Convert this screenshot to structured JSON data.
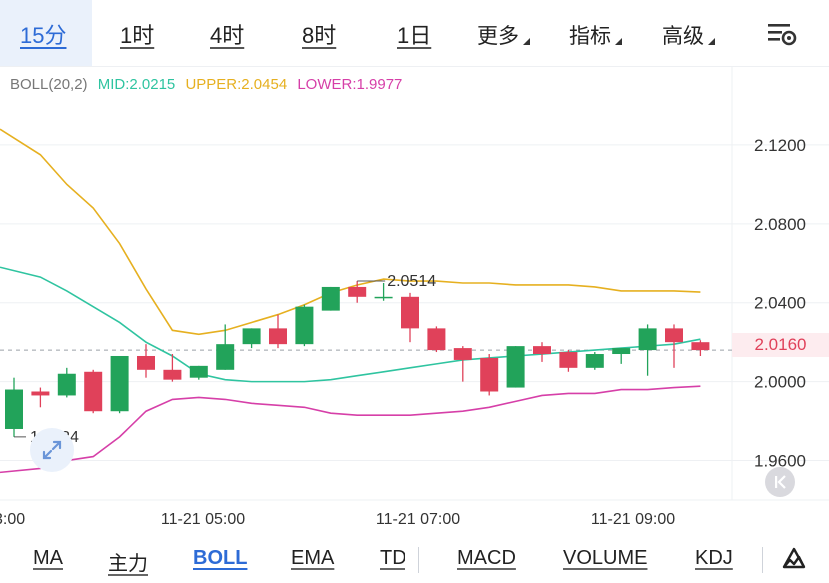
{
  "timeframes": {
    "tf_15m": "15分",
    "tf_1h": "1时",
    "tf_4h": "4时",
    "tf_8h": "8时",
    "tf_1d": "1日"
  },
  "menus": {
    "more": "更多",
    "indicators": "指标",
    "advanced": "高级"
  },
  "legend": {
    "boll": "BOLL(20,2)",
    "mid": "MID:2.0215",
    "upper": "UPPER:2.0454",
    "lower": "LOWER:1.9977"
  },
  "colors": {
    "up": "#22a35a",
    "down": "#e0415a",
    "mid": "#2fc4a0",
    "upper": "#e6b020",
    "lower": "#d63fa8",
    "accent": "#2d6bd6"
  },
  "price_axis": {
    "labels": [
      "2.1200",
      "2.0800",
      "2.0400",
      "2.0000",
      "1.9600"
    ],
    "current_price": "2.0160"
  },
  "time_axis": [
    "3:00",
    "11-21 05:00",
    "11-21 07:00",
    "11-21 09:00"
  ],
  "annotations": {
    "high": "2.0514",
    "low": "1.9734"
  },
  "chart_data": {
    "type": "candlestick",
    "ylim": [
      1.94,
      2.16
    ],
    "current_price": 2.016,
    "time_labels": [
      "3:00",
      "11-21 05:00",
      "11-21 07:00",
      "11-21 09:00"
    ],
    "candles": [
      {
        "o": 1.976,
        "h": 2.002,
        "l": 1.972,
        "c": 1.996
      },
      {
        "o": 1.995,
        "h": 1.997,
        "l": 1.987,
        "c": 1.993
      },
      {
        "o": 1.993,
        "h": 2.007,
        "l": 1.992,
        "c": 2.004
      },
      {
        "o": 2.005,
        "h": 2.006,
        "l": 1.984,
        "c": 1.985
      },
      {
        "o": 1.985,
        "h": 2.013,
        "l": 1.984,
        "c": 2.013
      },
      {
        "o": 2.013,
        "h": 2.019,
        "l": 2.002,
        "c": 2.006
      },
      {
        "o": 2.006,
        "h": 2.014,
        "l": 2.0,
        "c": 2.001
      },
      {
        "o": 2.002,
        "h": 2.008,
        "l": 2.001,
        "c": 2.008
      },
      {
        "o": 2.006,
        "h": 2.029,
        "l": 2.006,
        "c": 2.019
      },
      {
        "o": 2.019,
        "h": 2.027,
        "l": 2.017,
        "c": 2.027
      },
      {
        "o": 2.027,
        "h": 2.034,
        "l": 2.017,
        "c": 2.019
      },
      {
        "o": 2.019,
        "h": 2.039,
        "l": 2.018,
        "c": 2.038
      },
      {
        "o": 2.036,
        "h": 2.048,
        "l": 2.036,
        "c": 2.048
      },
      {
        "o": 2.048,
        "h": 2.051,
        "l": 2.04,
        "c": 2.043
      },
      {
        "o": 2.043,
        "h": 2.05,
        "l": 2.041,
        "c": 2.043
      },
      {
        "o": 2.043,
        "h": 2.045,
        "l": 2.02,
        "c": 2.027
      },
      {
        "o": 2.027,
        "h": 2.028,
        "l": 2.015,
        "c": 2.016
      },
      {
        "o": 2.017,
        "h": 2.018,
        "l": 2.0,
        "c": 2.011
      },
      {
        "o": 2.012,
        "h": 2.014,
        "l": 1.993,
        "c": 1.995
      },
      {
        "o": 1.997,
        "h": 2.018,
        "l": 1.997,
        "c": 2.018
      },
      {
        "o": 2.018,
        "h": 2.02,
        "l": 2.01,
        "c": 2.014
      },
      {
        "o": 2.015,
        "h": 2.016,
        "l": 2.005,
        "c": 2.007
      },
      {
        "o": 2.007,
        "h": 2.015,
        "l": 2.006,
        "c": 2.014
      },
      {
        "o": 2.014,
        "h": 2.017,
        "l": 2.009,
        "c": 2.017
      },
      {
        "o": 2.016,
        "h": 2.029,
        "l": 2.003,
        "c": 2.027
      },
      {
        "o": 2.027,
        "h": 2.029,
        "l": 2.007,
        "c": 2.02
      },
      {
        "o": 2.02,
        "h": 2.021,
        "l": 2.013,
        "c": 2.016
      }
    ],
    "mid": [
      2.058,
      2.053,
      2.046,
      2.038,
      2.03,
      2.02,
      2.013,
      2.004,
      2.001,
      2.0,
      2.0,
      2.0,
      2.001,
      2.003,
      2.005,
      2.007,
      2.009,
      2.011,
      2.012,
      2.013,
      2.014,
      2.015,
      2.016,
      2.017,
      2.018,
      2.019,
      2.0215
    ],
    "upper": [
      2.128,
      2.115,
      2.1,
      2.088,
      2.07,
      2.047,
      2.026,
      2.024,
      2.026,
      2.03,
      2.034,
      2.039,
      2.045,
      2.049,
      2.052,
      2.051,
      2.051,
      2.05,
      2.05,
      2.049,
      2.049,
      2.049,
      2.048,
      2.046,
      2.046,
      2.046,
      2.0454
    ],
    "lower": [
      1.954,
      1.956,
      1.96,
      1.962,
      1.972,
      1.985,
      1.991,
      1.992,
      1.991,
      1.989,
      1.988,
      1.987,
      1.984,
      1.983,
      1.983,
      1.983,
      1.984,
      1.985,
      1.987,
      1.99,
      1.993,
      1.994,
      1.994,
      1.996,
      1.996,
      1.997,
      1.9977
    ]
  },
  "bottom_tabs": {
    "ma": "MA",
    "main": "主力",
    "boll": "BOLL",
    "ema": "EMA",
    "td": "TD",
    "macd": "MACD",
    "volume": "VOLUME",
    "kdj": "KDJ"
  },
  "icons": {
    "settings": "settings-sliders-icon",
    "scroll": "scroll-to-latest-icon",
    "zoom": "expand-arrows-icon",
    "draw": "drawing-tool-icon"
  }
}
